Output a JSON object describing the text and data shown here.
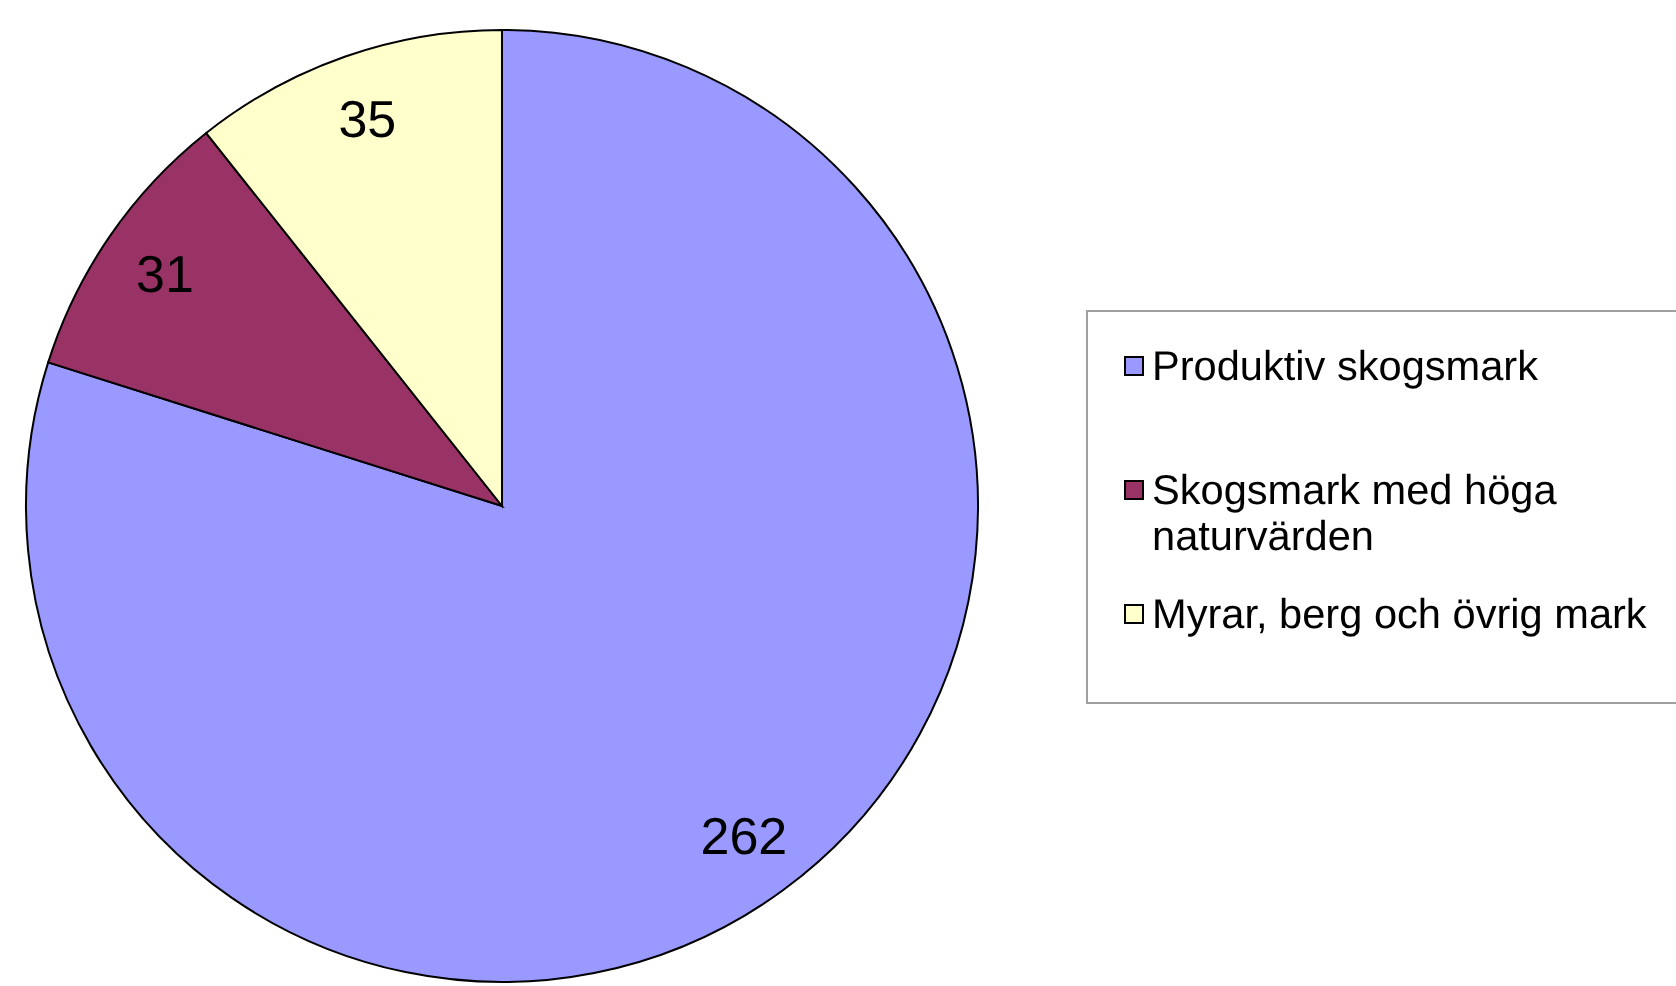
{
  "chart_data": {
    "type": "pie",
    "categories": [
      "Produktiv skogsmark",
      "Skogsmark med höga naturvärden",
      "Myrar, berg och övrig mark"
    ],
    "values": [
      262,
      31,
      35
    ],
    "colors": [
      "#9999ff",
      "#993366",
      "#ffffcc"
    ],
    "data_labels": true,
    "legend": "right"
  }
}
